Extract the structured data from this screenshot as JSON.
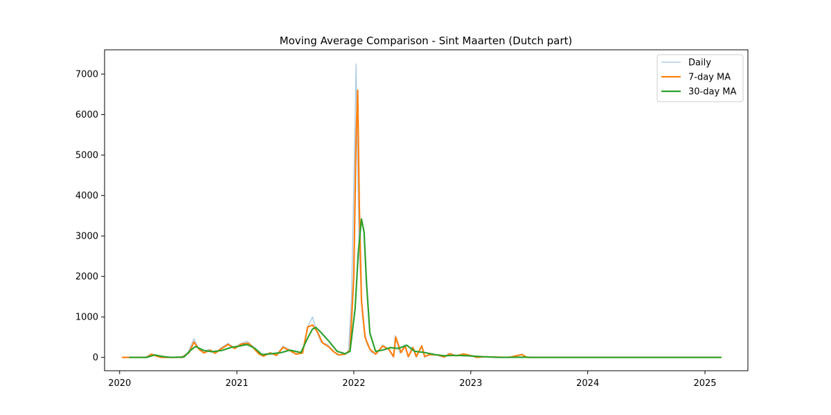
{
  "chart_data": {
    "type": "line",
    "title": "Moving Average Comparison - Sint Maarten (Dutch part)",
    "xlabel": "",
    "ylabel": "",
    "x_ticks": [
      "2020",
      "2021",
      "2022",
      "2023",
      "2024",
      "2025"
    ],
    "y_ticks": [
      "0",
      "1000",
      "2000",
      "3000",
      "4000",
      "5000",
      "6000",
      "7000"
    ],
    "xlim": [
      "2019-11-15",
      "2025-05-15"
    ],
    "ylim": [
      -330,
      7600
    ],
    "grid": false,
    "legend_position": "top-right",
    "series": [
      {
        "name": "Daily",
        "color": "#aecde4",
        "points": [
          [
            "2020-01-10",
            0
          ],
          [
            "2020-03-20",
            0
          ],
          [
            "2020-04-10",
            90
          ],
          [
            "2020-04-25",
            30
          ],
          [
            "2020-05-10",
            0
          ],
          [
            "2020-07-10",
            0
          ],
          [
            "2020-08-01",
            120
          ],
          [
            "2020-08-20",
            460
          ],
          [
            "2020-09-01",
            250
          ],
          [
            "2020-09-20",
            120
          ],
          [
            "2020-10-05",
            200
          ],
          [
            "2020-10-25",
            100
          ],
          [
            "2020-11-10",
            220
          ],
          [
            "2020-12-05",
            350
          ],
          [
            "2020-12-25",
            230
          ],
          [
            "2021-01-10",
            330
          ],
          [
            "2021-02-01",
            400
          ],
          [
            "2021-02-20",
            280
          ],
          [
            "2021-03-10",
            100
          ],
          [
            "2021-03-25",
            40
          ],
          [
            "2021-04-15",
            120
          ],
          [
            "2021-05-05",
            60
          ],
          [
            "2021-05-25",
            280
          ],
          [
            "2021-06-15",
            180
          ],
          [
            "2021-07-05",
            90
          ],
          [
            "2021-07-25",
            100
          ],
          [
            "2021-08-10",
            760
          ],
          [
            "2021-08-25",
            1000
          ],
          [
            "2021-09-05",
            700
          ],
          [
            "2021-09-20",
            380
          ],
          [
            "2021-10-10",
            320
          ],
          [
            "2021-10-25",
            200
          ],
          [
            "2021-11-10",
            60
          ],
          [
            "2021-12-01",
            80
          ],
          [
            "2021-12-15",
            120
          ],
          [
            "2021-12-25",
            1500
          ],
          [
            "2022-01-04",
            5400
          ],
          [
            "2022-01-08",
            7250
          ],
          [
            "2022-01-12",
            5200
          ],
          [
            "2022-01-18",
            2600
          ],
          [
            "2022-01-28",
            1000
          ],
          [
            "2022-02-10",
            350
          ],
          [
            "2022-02-25",
            120
          ],
          [
            "2022-03-15",
            100
          ],
          [
            "2022-04-01",
            310
          ],
          [
            "2022-04-20",
            200
          ],
          [
            "2022-05-05",
            0
          ],
          [
            "2022-05-10",
            540
          ],
          [
            "2022-05-25",
            100
          ],
          [
            "2022-06-10",
            320
          ],
          [
            "2022-06-20",
            0
          ],
          [
            "2022-07-01",
            260
          ],
          [
            "2022-07-15",
            0
          ],
          [
            "2022-08-01",
            300
          ],
          [
            "2022-08-10",
            0
          ],
          [
            "2022-08-25",
            80
          ],
          [
            "2022-09-15",
            60
          ],
          [
            "2022-10-10",
            0
          ],
          [
            "2022-10-25",
            100
          ],
          [
            "2022-11-15",
            40
          ],
          [
            "2022-12-10",
            90
          ],
          [
            "2023-01-05",
            40
          ],
          [
            "2023-01-15",
            0
          ],
          [
            "2023-02-15",
            20
          ],
          [
            "2023-05-01",
            0
          ],
          [
            "2023-06-10",
            80
          ],
          [
            "2023-06-25",
            0
          ],
          [
            "2025-02-20",
            0
          ]
        ]
      },
      {
        "name": "7-day MA",
        "color": "#ff7f0e",
        "points": [
          [
            "2020-01-10",
            0
          ],
          [
            "2020-03-25",
            0
          ],
          [
            "2020-04-10",
            80
          ],
          [
            "2020-04-25",
            30
          ],
          [
            "2020-05-10",
            0
          ],
          [
            "2020-07-15",
            0
          ],
          [
            "2020-08-05",
            120
          ],
          [
            "2020-08-20",
            380
          ],
          [
            "2020-09-05",
            200
          ],
          [
            "2020-09-20",
            110
          ],
          [
            "2020-10-10",
            180
          ],
          [
            "2020-10-25",
            100
          ],
          [
            "2020-11-10",
            200
          ],
          [
            "2020-12-05",
            320
          ],
          [
            "2020-12-25",
            220
          ],
          [
            "2021-01-15",
            330
          ],
          [
            "2021-02-05",
            350
          ],
          [
            "2021-02-20",
            250
          ],
          [
            "2021-03-10",
            90
          ],
          [
            "2021-03-25",
            30
          ],
          [
            "2021-04-15",
            110
          ],
          [
            "2021-05-05",
            50
          ],
          [
            "2021-05-25",
            250
          ],
          [
            "2021-06-15",
            170
          ],
          [
            "2021-07-05",
            80
          ],
          [
            "2021-07-25",
            110
          ],
          [
            "2021-08-10",
            750
          ],
          [
            "2021-08-25",
            800
          ],
          [
            "2021-09-10",
            620
          ],
          [
            "2021-09-25",
            360
          ],
          [
            "2021-10-15",
            260
          ],
          [
            "2021-10-30",
            140
          ],
          [
            "2021-11-15",
            60
          ],
          [
            "2021-12-05",
            80
          ],
          [
            "2021-12-20",
            180
          ],
          [
            "2022-01-01",
            2000
          ],
          [
            "2022-01-08",
            5400
          ],
          [
            "2022-01-13",
            6600
          ],
          [
            "2022-01-18",
            3800
          ],
          [
            "2022-01-25",
            1400
          ],
          [
            "2022-02-05",
            500
          ],
          [
            "2022-02-20",
            200
          ],
          [
            "2022-03-10",
            80
          ],
          [
            "2022-04-01",
            280
          ],
          [
            "2022-04-20",
            200
          ],
          [
            "2022-05-05",
            20
          ],
          [
            "2022-05-12",
            500
          ],
          [
            "2022-05-28",
            120
          ],
          [
            "2022-06-10",
            280
          ],
          [
            "2022-06-20",
            20
          ],
          [
            "2022-07-05",
            240
          ],
          [
            "2022-07-15",
            20
          ],
          [
            "2022-08-01",
            280
          ],
          [
            "2022-08-10",
            20
          ],
          [
            "2022-08-25",
            70
          ],
          [
            "2022-09-20",
            60
          ],
          [
            "2022-10-10",
            10
          ],
          [
            "2022-10-28",
            90
          ],
          [
            "2022-11-15",
            40
          ],
          [
            "2022-12-10",
            80
          ],
          [
            "2023-01-05",
            40
          ],
          [
            "2023-01-20",
            0
          ],
          [
            "2023-02-15",
            15
          ],
          [
            "2023-05-01",
            0
          ],
          [
            "2023-06-10",
            70
          ],
          [
            "2023-06-25",
            0
          ],
          [
            "2025-02-20",
            0
          ]
        ]
      },
      {
        "name": "30-day MA",
        "color": "#2ca02c",
        "points": [
          [
            "2020-02-01",
            0
          ],
          [
            "2020-03-25",
            0
          ],
          [
            "2020-04-20",
            60
          ],
          [
            "2020-05-15",
            20
          ],
          [
            "2020-06-10",
            0
          ],
          [
            "2020-07-20",
            10
          ],
          [
            "2020-08-10",
            180
          ],
          [
            "2020-08-25",
            270
          ],
          [
            "2020-09-20",
            170
          ],
          [
            "2020-10-15",
            140
          ],
          [
            "2020-11-15",
            170
          ],
          [
            "2020-12-15",
            250
          ],
          [
            "2021-01-10",
            280
          ],
          [
            "2021-02-01",
            320
          ],
          [
            "2021-02-25",
            230
          ],
          [
            "2021-03-20",
            70
          ],
          [
            "2021-04-20",
            90
          ],
          [
            "2021-05-20",
            120
          ],
          [
            "2021-06-15",
            180
          ],
          [
            "2021-07-20",
            120
          ],
          [
            "2021-08-10",
            480
          ],
          [
            "2021-08-25",
            700
          ],
          [
            "2021-09-05",
            740
          ],
          [
            "2021-09-20",
            620
          ],
          [
            "2021-10-15",
            400
          ],
          [
            "2021-11-10",
            150
          ],
          [
            "2021-12-05",
            90
          ],
          [
            "2021-12-20",
            150
          ],
          [
            "2022-01-05",
            1200
          ],
          [
            "2022-01-15",
            2600
          ],
          [
            "2022-01-25",
            3420
          ],
          [
            "2022-02-02",
            3100
          ],
          [
            "2022-02-10",
            1800
          ],
          [
            "2022-02-20",
            600
          ],
          [
            "2022-03-10",
            150
          ],
          [
            "2022-04-01",
            180
          ],
          [
            "2022-04-25",
            240
          ],
          [
            "2022-05-20",
            220
          ],
          [
            "2022-06-15",
            300
          ],
          [
            "2022-07-10",
            150
          ],
          [
            "2022-08-10",
            120
          ],
          [
            "2022-09-10",
            70
          ],
          [
            "2022-10-10",
            40
          ],
          [
            "2022-11-10",
            50
          ],
          [
            "2022-12-10",
            45
          ],
          [
            "2023-01-10",
            30
          ],
          [
            "2023-02-10",
            15
          ],
          [
            "2023-03-30",
            0
          ],
          [
            "2023-06-20",
            5
          ],
          [
            "2023-07-10",
            0
          ],
          [
            "2025-02-20",
            0
          ]
        ]
      }
    ]
  }
}
